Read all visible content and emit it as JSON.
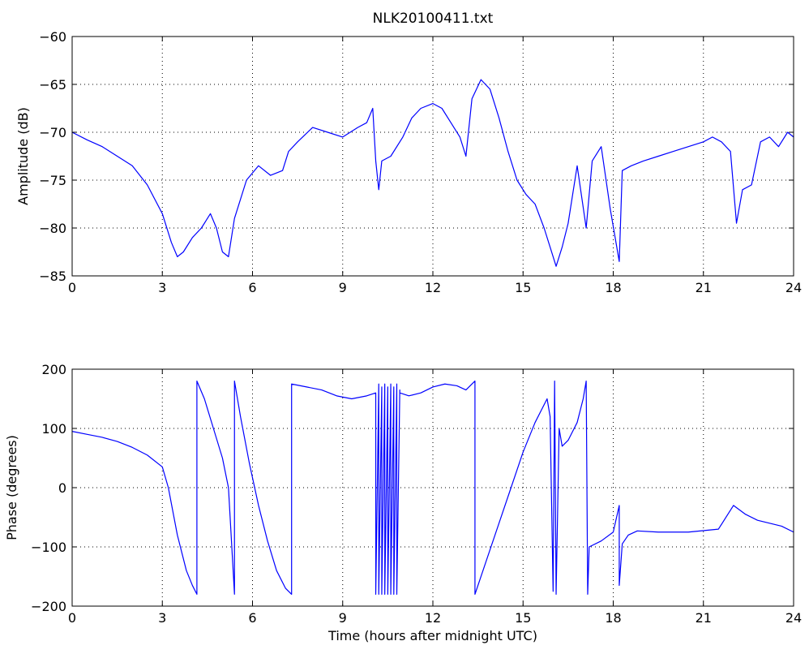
{
  "chart_data": [
    {
      "type": "line",
      "title": "NLK20100411.txt",
      "xlabel": "",
      "ylabel": "Amplitude (dB)",
      "xlim": [
        0,
        24
      ],
      "ylim": [
        -85,
        -60
      ],
      "xticks": [
        0,
        3,
        6,
        9,
        12,
        15,
        18,
        21,
        24
      ],
      "yticks": [
        -60,
        -65,
        -70,
        -75,
        -80,
        -85
      ],
      "grid": true,
      "series": [
        {
          "color": "#0000ff",
          "x": [
            0,
            0.5,
            1,
            1.5,
            2,
            2.5,
            3,
            3.3,
            3.5,
            3.7,
            4,
            4.3,
            4.6,
            4.8,
            5,
            5.2,
            5.4,
            5.8,
            6.2,
            6.6,
            7,
            7.2,
            7.5,
            8,
            8.5,
            9,
            9.5,
            9.8,
            10,
            10.1,
            10.2,
            10.3,
            10.6,
            11,
            11.3,
            11.6,
            12,
            12.3,
            12.6,
            12.9,
            13.1,
            13.3,
            13.6,
            13.9,
            14.2,
            14.5,
            14.8,
            15.1,
            15.4,
            15.7,
            15.9,
            16.1,
            16.3,
            16.5,
            16.8,
            17.1,
            17.3,
            17.6,
            17.9,
            18.2,
            18.3,
            18.6,
            19,
            19.5,
            20,
            20.5,
            21,
            21.3,
            21.6,
            21.9,
            22.1,
            22.3,
            22.6,
            22.9,
            23.2,
            23.5,
            23.8,
            24
          ],
          "values": [
            -70,
            -70.8,
            -71.5,
            -72.5,
            -73.5,
            -75.5,
            -78.5,
            -81.5,
            -83,
            -82.5,
            -81,
            -80,
            -78.5,
            -80,
            -82.5,
            -83,
            -79,
            -75,
            -73.5,
            -74.5,
            -74,
            -72,
            -71,
            -69.5,
            -70,
            -70.5,
            -69.5,
            -69,
            -67.5,
            -73,
            -76,
            -73,
            -72.5,
            -70.5,
            -68.5,
            -67.5,
            -67,
            -67.5,
            -69,
            -70.5,
            -72.5,
            -66.5,
            -64.5,
            -65.5,
            -68.5,
            -72,
            -75,
            -76.5,
            -77.5,
            -80,
            -82,
            -84,
            -82,
            -79.5,
            -73.5,
            -80,
            -73,
            -71.5,
            -78,
            -83.5,
            -74,
            -73.5,
            -73,
            -72.5,
            -72,
            -71.5,
            -71,
            -70.5,
            -71,
            -72,
            -79.5,
            -76,
            -75.5,
            -71,
            -70.5,
            -71.5,
            -70,
            -70.5
          ]
        }
      ]
    },
    {
      "type": "line",
      "title": "",
      "xlabel": "Time (hours after midnight UTC)",
      "ylabel": "Phase (degrees)",
      "xlim": [
        0,
        24
      ],
      "ylim": [
        -200,
        200
      ],
      "xticks": [
        0,
        3,
        6,
        9,
        12,
        15,
        18,
        21,
        24
      ],
      "yticks": [
        200,
        100,
        0,
        -100,
        -200
      ],
      "grid": true,
      "series": [
        {
          "color": "#0000ff",
          "x": [
            0,
            0.5,
            1,
            1.5,
            2,
            2.5,
            3,
            3.2,
            3.5,
            3.8,
            4,
            4.15,
            4.15,
            4.4,
            4.7,
            5,
            5.2,
            5.4,
            5.4,
            5.6,
            5.9,
            6.2,
            6.5,
            6.8,
            7.1,
            7.3,
            7.3,
            7.8,
            8.3,
            8.8,
            9.3,
            9.8,
            10.1,
            10.1,
            10.2,
            10.2,
            10.3,
            10.3,
            10.4,
            10.4,
            10.5,
            10.5,
            10.6,
            10.6,
            10.7,
            10.7,
            10.8,
            10.8,
            10.9,
            10.9,
            11.2,
            11.6,
            12,
            12.4,
            12.8,
            13.1,
            13.4,
            13.4,
            13.8,
            14.2,
            14.6,
            15,
            15.4,
            15.8,
            15.9,
            16,
            16.05,
            16.1,
            16.2,
            16.3,
            16.5,
            16.8,
            17.0,
            17.1,
            17.15,
            17.2,
            17.6,
            18.0,
            18.2,
            18.2,
            18.3,
            18.5,
            18.8,
            19.5,
            20.5,
            21.5,
            22,
            22.4,
            22.8,
            23.2,
            23.6,
            24
          ],
          "values": [
            95,
            90,
            85,
            78,
            68,
            55,
            35,
            0,
            -80,
            -140,
            -165,
            -180,
            180,
            150,
            100,
            50,
            0,
            -180,
            180,
            120,
            40,
            -30,
            -90,
            -140,
            -170,
            -180,
            175,
            170,
            165,
            155,
            150,
            155,
            160,
            -180,
            175,
            -180,
            170,
            -180,
            175,
            -180,
            170,
            -180,
            175,
            -180,
            170,
            -180,
            175,
            -180,
            165,
            160,
            155,
            160,
            170,
            175,
            172,
            165,
            180,
            -180,
            -120,
            -60,
            0,
            60,
            110,
            150,
            120,
            -175,
            180,
            -180,
            100,
            70,
            80,
            110,
            150,
            180,
            -180,
            -100,
            -90,
            -75,
            -30,
            -165,
            -95,
            -80,
            -73,
            -75,
            -75,
            -70,
            -30,
            -45,
            -55,
            -60,
            -65,
            -75
          ]
        }
      ]
    }
  ]
}
